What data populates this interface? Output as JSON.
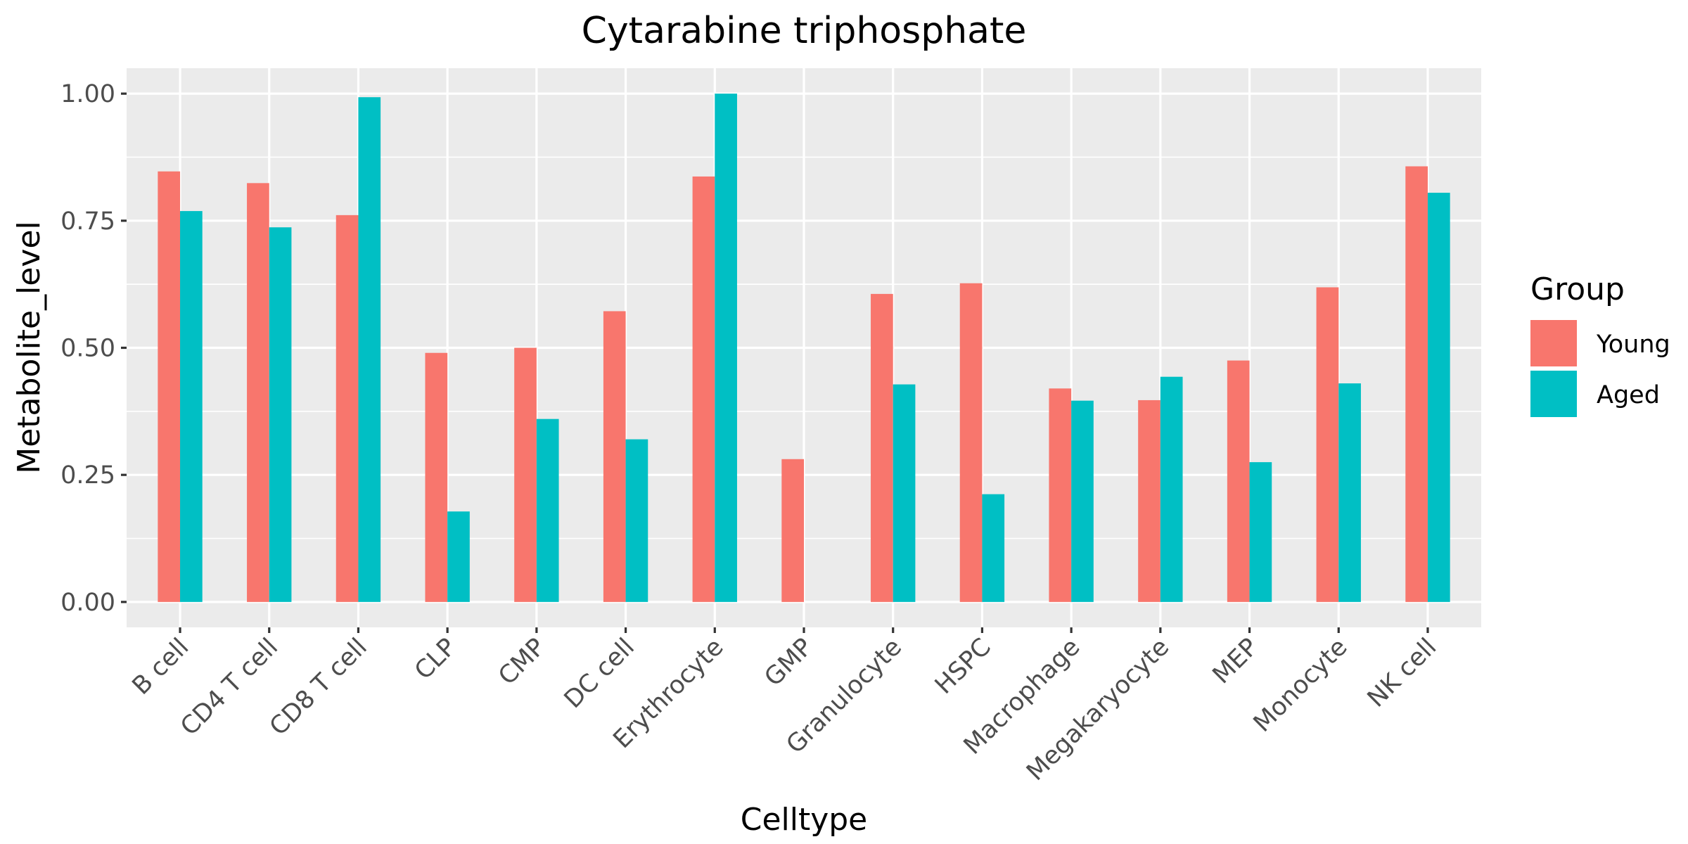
{
  "chart_data": {
    "type": "bar",
    "title": "Cytarabine triphosphate",
    "xlabel": "Celltype",
    "ylabel": "Metabolite_level",
    "ylim": [
      -0.05,
      1.05
    ],
    "yticks": [
      0.0,
      0.25,
      0.5,
      0.75,
      1.0
    ],
    "ytick_labels": [
      "0.00",
      "0.25",
      "0.50",
      "0.75",
      "1.00"
    ],
    "grid": true,
    "categories": [
      "B cell",
      "CD4 T cell",
      "CD8 T cell",
      "CLP",
      "CMP",
      "DC cell",
      "Erythrocyte",
      "GMP",
      "Granulocyte",
      "HSPC",
      "Macrophage",
      "Megakaryocyte",
      "MEP",
      "Monocyte",
      "NK cell"
    ],
    "series": [
      {
        "name": "Young",
        "color": "#F8766D",
        "values": [
          0.847,
          0.824,
          0.761,
          0.49,
          0.5,
          0.572,
          0.837,
          0.281,
          0.606,
          0.627,
          0.42,
          0.397,
          0.475,
          0.619,
          0.857
        ]
      },
      {
        "name": "Aged",
        "color": "#00BFC4",
        "values": [
          0.769,
          0.737,
          0.993,
          0.178,
          0.36,
          0.32,
          1.0,
          null,
          0.428,
          0.212,
          0.396,
          0.443,
          0.275,
          0.43,
          0.805
        ]
      }
    ],
    "legend": {
      "title": "Group",
      "position": "right"
    },
    "panel_background": "#EBEBEB",
    "grid_color": "#FFFFFF"
  }
}
